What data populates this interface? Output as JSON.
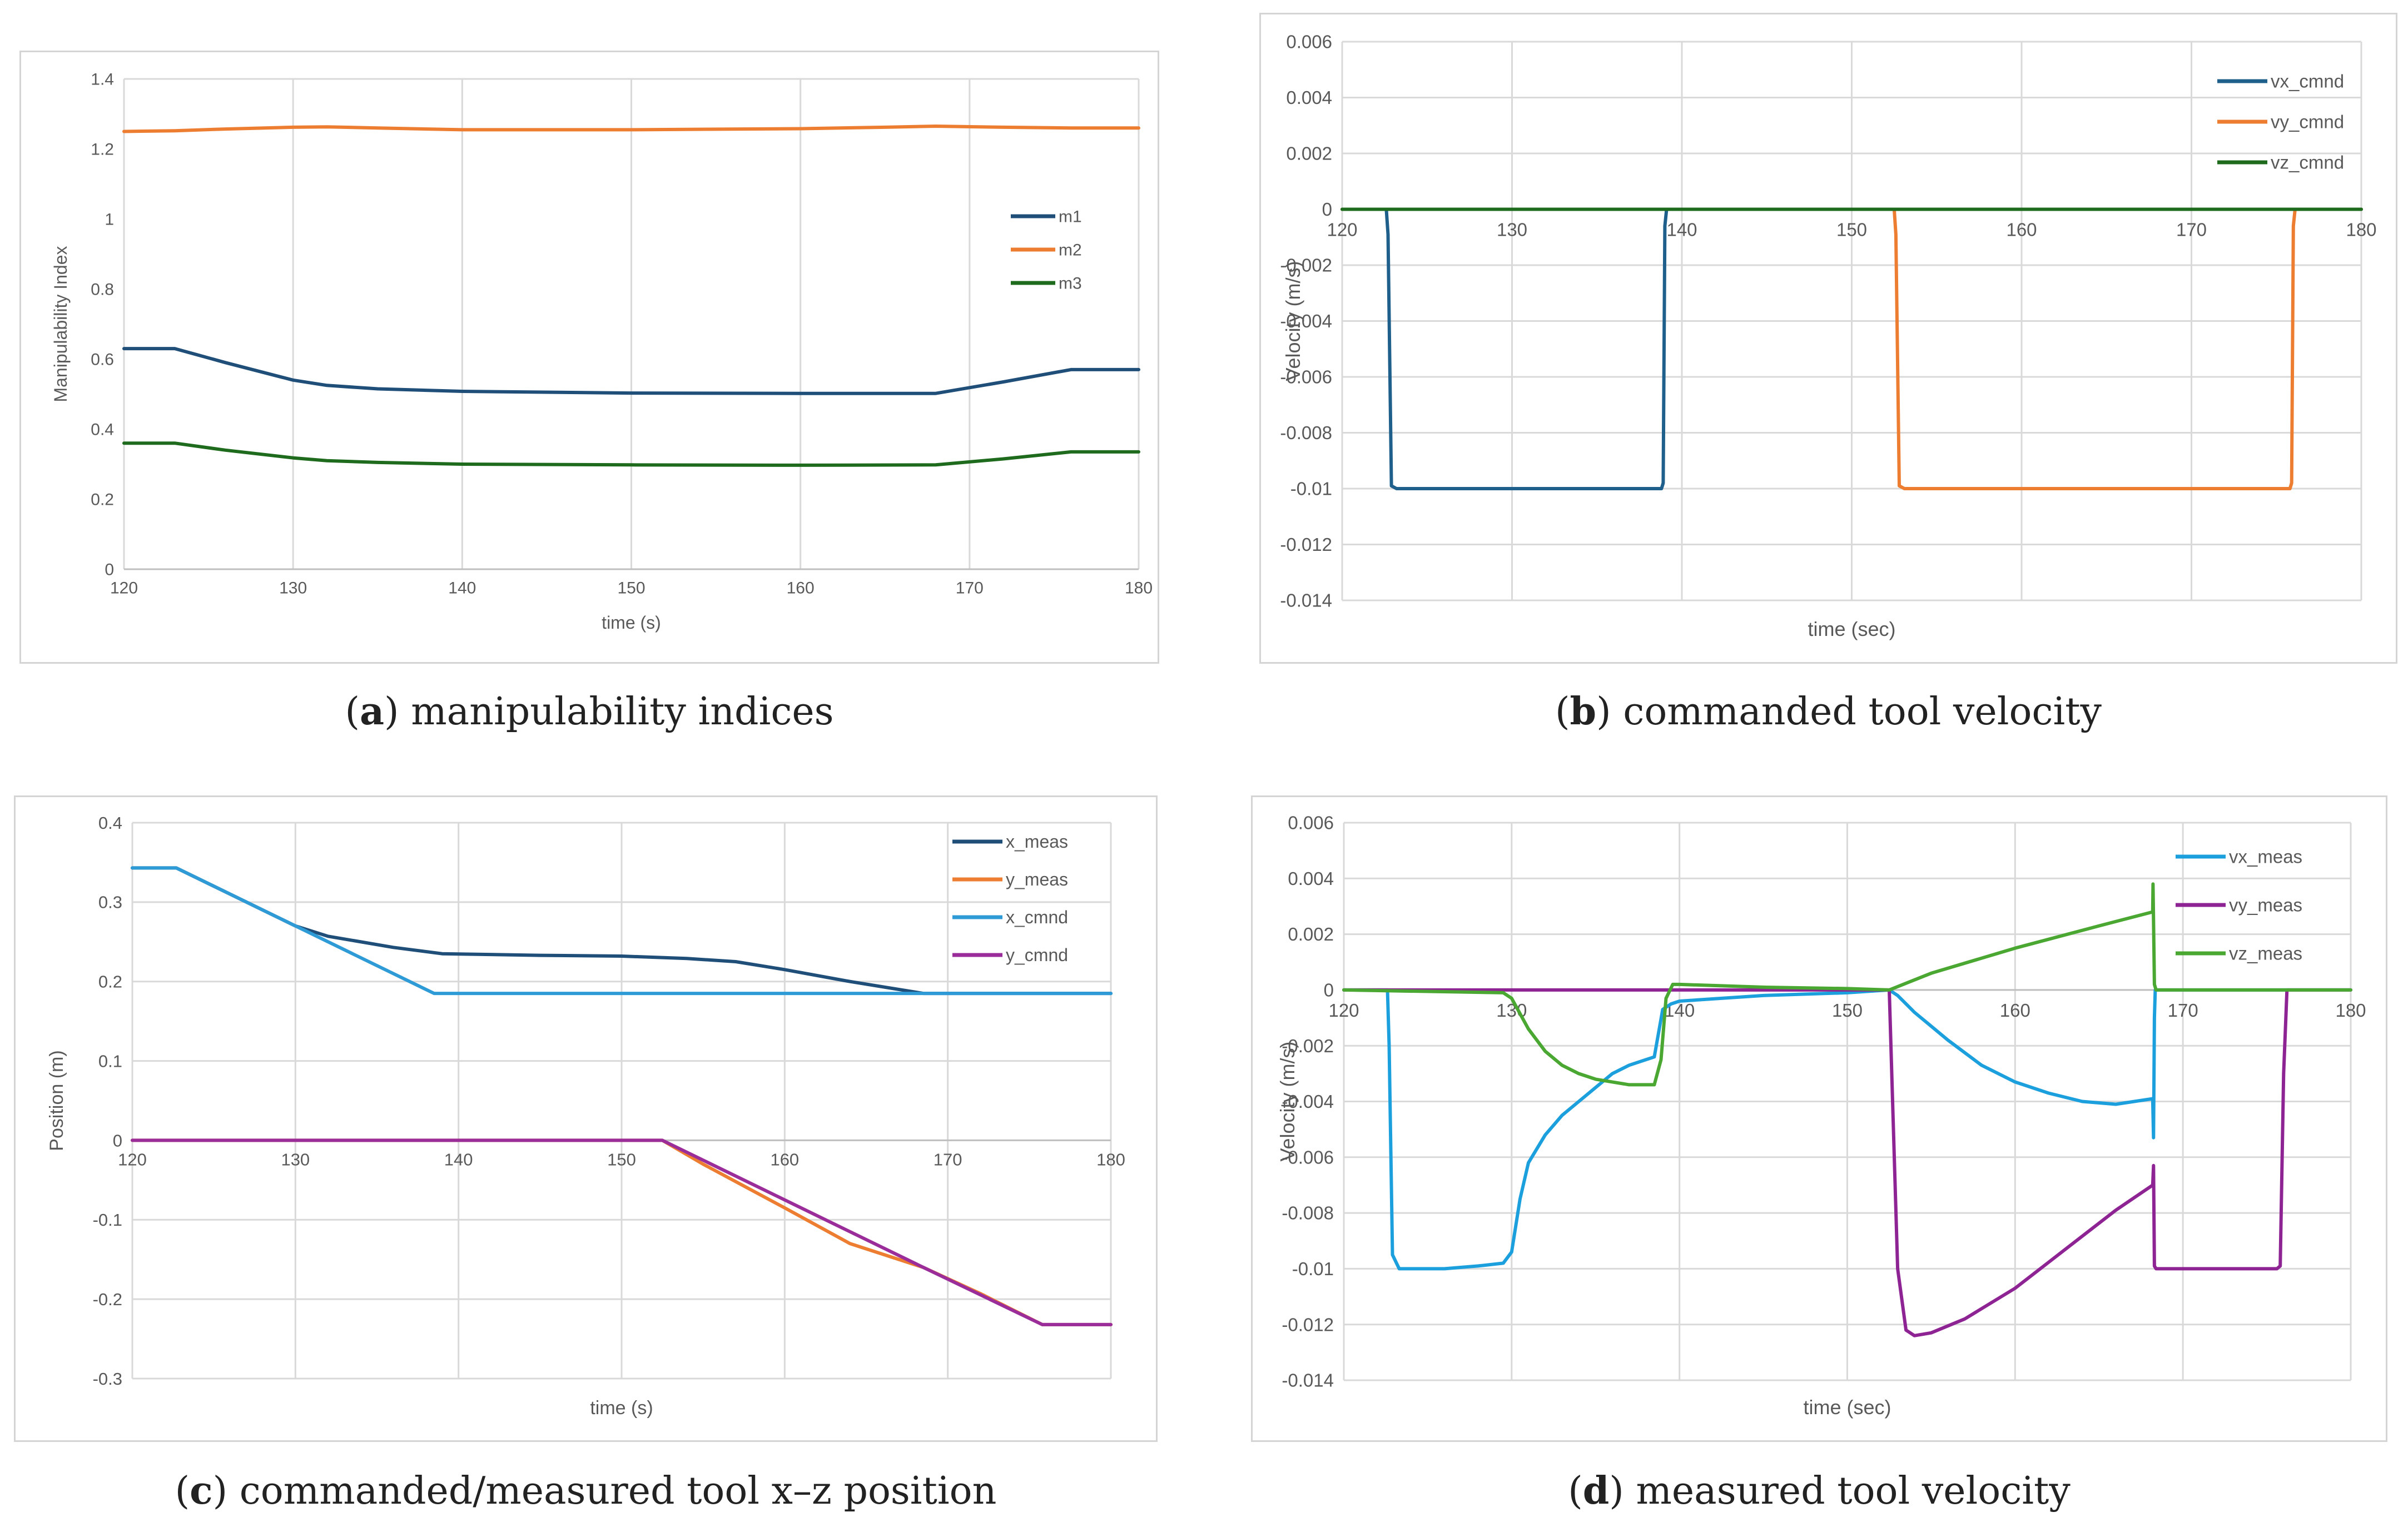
{
  "figure": {
    "captions": [
      {
        "letter": "a",
        "text": ") manipulability indices"
      },
      {
        "letter": "b",
        "text": ") commanded tool velocity"
      },
      {
        "letter": "c",
        "text": ") commanded/measured tool x–z position"
      },
      {
        "letter": "d",
        "text": ") measured tool velocity"
      }
    ]
  },
  "chart_data": [
    {
      "id": "a",
      "type": "line",
      "title": "",
      "xlabel": "time (s)",
      "ylabel": "Manipulability Index",
      "xlim": [
        120,
        180
      ],
      "ylim": [
        0,
        1.4
      ],
      "xticks": [
        120,
        130,
        140,
        150,
        160,
        170,
        180
      ],
      "xtick_labels": [
        "120",
        "130",
        "140",
        "150",
        "160",
        "170",
        "180"
      ],
      "yticks": [
        0,
        0.2,
        0.4,
        0.6,
        0.8,
        1,
        1.2,
        1.4
      ],
      "ytick_labels": [
        "0",
        "0.2",
        "0.4",
        "0.6",
        "0.8",
        "1",
        "1.2",
        "1.4"
      ],
      "grid": "vertical",
      "legend": "right",
      "series": [
        {
          "name": "m1",
          "color": "#1f4e79",
          "x": [
            120,
            123,
            126,
            130,
            132,
            135,
            140,
            150,
            160,
            168,
            172,
            176,
            180
          ],
          "y": [
            0.63,
            0.63,
            0.59,
            0.54,
            0.525,
            0.515,
            0.508,
            0.503,
            0.502,
            0.502,
            0.535,
            0.57,
            0.57
          ]
        },
        {
          "name": "m2",
          "color": "#ed7d31",
          "x": [
            120,
            123,
            126,
            130,
            132,
            135,
            140,
            150,
            160,
            165,
            168,
            172,
            176,
            180
          ],
          "y": [
            1.25,
            1.252,
            1.257,
            1.262,
            1.263,
            1.26,
            1.255,
            1.255,
            1.258,
            1.262,
            1.265,
            1.262,
            1.26,
            1.26
          ]
        },
        {
          "name": "m3",
          "color": "#1e6b1e",
          "x": [
            120,
            123,
            126,
            130,
            132,
            135,
            140,
            150,
            160,
            168,
            172,
            176,
            180
          ],
          "y": [
            0.36,
            0.36,
            0.34,
            0.318,
            0.31,
            0.305,
            0.3,
            0.298,
            0.297,
            0.298,
            0.315,
            0.335,
            0.335
          ]
        }
      ]
    },
    {
      "id": "b",
      "type": "line",
      "title": "",
      "xlabel": "time (sec)",
      "ylabel": "Velocity (m/s)",
      "xlim": [
        120,
        180
      ],
      "ylim": [
        -0.014,
        0.006
      ],
      "xticks": [
        120,
        130,
        140,
        150,
        160,
        170,
        180
      ],
      "xtick_labels": [
        "120",
        "130",
        "140",
        "150",
        "160",
        "170",
        "180"
      ],
      "yticks": [
        -0.014,
        -0.012,
        -0.01,
        -0.008,
        -0.006,
        -0.004,
        -0.002,
        0,
        0.002,
        0.004,
        0.006
      ],
      "ytick_labels": [
        "-0.014",
        "-0.012",
        "-0.01",
        "-0.008",
        "-0.006",
        "-0.004",
        "-0.002",
        "0",
        "0.002",
        "0.004",
        "0.006"
      ],
      "xaxis_at_zero": true,
      "grid": "both",
      "legend": "top-right",
      "series": [
        {
          "name": "vx_cmnd",
          "color": "#1f5f8b",
          "x": [
            120,
            122.6,
            122.7,
            122.9,
            123.2,
            123.6,
            138.8,
            138.9,
            139.0,
            139.1,
            180
          ],
          "y": [
            0,
            0,
            -0.0009,
            -0.0099,
            -0.01,
            -0.01,
            -0.01,
            -0.0098,
            -0.0006,
            0,
            0
          ]
        },
        {
          "name": "vy_cmnd",
          "color": "#ed7d31",
          "x": [
            120,
            152.5,
            152.6,
            152.8,
            153.1,
            153.5,
            175.8,
            175.9,
            176.0,
            176.1,
            180
          ],
          "y": [
            0,
            0,
            -0.0009,
            -0.0099,
            -0.01,
            -0.01,
            -0.01,
            -0.0098,
            -0.0006,
            0,
            0
          ]
        },
        {
          "name": "vz_cmnd",
          "color": "#1e6b1e",
          "x": [
            120,
            180
          ],
          "y": [
            0,
            0
          ]
        }
      ]
    },
    {
      "id": "c",
      "type": "line",
      "title": "",
      "xlabel": "time (s)",
      "ylabel": "Position (m)",
      "xlim": [
        120,
        180
      ],
      "ylim": [
        -0.3,
        0.4
      ],
      "xticks": [
        120,
        130,
        140,
        150,
        160,
        170,
        180
      ],
      "xtick_labels": [
        "120",
        "130",
        "140",
        "150",
        "160",
        "170",
        "180"
      ],
      "yticks": [
        -0.3,
        -0.2,
        -0.1,
        0,
        0.1,
        0.2,
        0.3,
        0.4
      ],
      "ytick_labels": [
        "-0.3",
        "-0.2",
        "-0.1",
        "0",
        "0.1",
        "0.2",
        "0.3",
        "0.4"
      ],
      "xaxis_at_zero": true,
      "grid": "both",
      "legend": "top-right",
      "series": [
        {
          "name": "x_meas",
          "color": "#1f4e79",
          "x": [
            120,
            122.7,
            126,
            130,
            132,
            136,
            139,
            145,
            150,
            154,
            157,
            160,
            164,
            168.5,
            180
          ],
          "y": [
            0.343,
            0.343,
            0.31,
            0.27,
            0.257,
            0.243,
            0.235,
            0.233,
            0.232,
            0.229,
            0.225,
            0.215,
            0.2,
            0.185,
            0.185
          ]
        },
        {
          "name": "y_meas",
          "color": "#ed7d31",
          "x": [
            120,
            152.5,
            155,
            160,
            164,
            168.5,
            172,
            175.8,
            180
          ],
          "y": [
            0,
            0,
            -0.03,
            -0.085,
            -0.13,
            -0.16,
            -0.193,
            -0.232,
            -0.232
          ]
        },
        {
          "name": "x_cmnd",
          "color": "#2e9bd6",
          "x": [
            120,
            122.7,
            138.5,
            180
          ],
          "y": [
            0.343,
            0.343,
            0.185,
            0.185
          ]
        },
        {
          "name": "y_cmnd",
          "color": "#9a2d9a",
          "x": [
            120,
            152.5,
            168.5,
            175.8,
            180
          ],
          "y": [
            0,
            0,
            -0.16,
            -0.232,
            -0.232
          ]
        }
      ]
    },
    {
      "id": "d",
      "type": "line",
      "title": "",
      "xlabel": "time (sec)",
      "ylabel": "Velocity (m/s)",
      "xlim": [
        120,
        180
      ],
      "ylim": [
        -0.014,
        0.006
      ],
      "xticks": [
        120,
        130,
        140,
        150,
        160,
        170,
        180
      ],
      "xtick_labels": [
        "120",
        "130",
        "140",
        "150",
        "160",
        "170",
        "180"
      ],
      "yticks": [
        -0.014,
        -0.012,
        -0.01,
        -0.008,
        -0.006,
        -0.004,
        -0.002,
        0,
        0.002,
        0.004,
        0.006
      ],
      "ytick_labels": [
        "-0.014",
        "-0.012",
        "-0.01",
        "-0.008",
        "-0.006",
        "-0.004",
        "-0.002",
        "0",
        "0.002",
        "0.004",
        "0.006"
      ],
      "xaxis_at_zero": true,
      "grid": "both",
      "legend": "top-right",
      "series": [
        {
          "name": "vx_meas",
          "color": "#1ca0dd",
          "x": [
            120,
            122.6,
            122.7,
            122.9,
            123.3,
            126,
            128,
            129.5,
            130,
            130.5,
            131,
            132,
            133,
            134,
            135,
            136,
            137,
            138.5,
            139.0,
            139.5,
            140,
            145,
            150,
            152.5,
            153,
            154,
            155,
            156,
            158,
            160,
            162,
            164,
            166,
            168.2,
            168.25,
            168.3,
            168.35,
            180
          ],
          "y": [
            0,
            0,
            -0.002,
            -0.0095,
            -0.01,
            -0.01,
            -0.0099,
            -0.0098,
            -0.0094,
            -0.0075,
            -0.0062,
            -0.0052,
            -0.0045,
            -0.004,
            -0.0035,
            -0.003,
            -0.0027,
            -0.0024,
            -0.0007,
            -0.0005,
            -0.0004,
            -0.0002,
            -0.0001,
            0,
            -0.0002,
            -0.0008,
            -0.0013,
            -0.0018,
            -0.0027,
            -0.0033,
            -0.0037,
            -0.004,
            -0.0041,
            -0.0039,
            -0.0053,
            -0.001,
            0,
            0
          ]
        },
        {
          "name": "vy_meas",
          "color": "#8e2393",
          "x": [
            120,
            152.5,
            152.7,
            153.0,
            153.5,
            154,
            155,
            157,
            160,
            163,
            166,
            168.2,
            168.25,
            168.3,
            168.4,
            175.6,
            175.8,
            176.0,
            176.2,
            180
          ],
          "y": [
            0,
            0,
            -0.004,
            -0.01,
            -0.0122,
            -0.0124,
            -0.0123,
            -0.0118,
            -0.0107,
            -0.0093,
            -0.0079,
            -0.007,
            -0.0063,
            -0.0099,
            -0.01,
            -0.01,
            -0.0099,
            -0.003,
            0,
            0
          ]
        },
        {
          "name": "vz_meas",
          "color": "#4aa832",
          "x": [
            120,
            129.5,
            130,
            131,
            132,
            133,
            134,
            135,
            136,
            137,
            138.5,
            138.9,
            139.2,
            139.6,
            140,
            145,
            150,
            152.5,
            155,
            160,
            165,
            168.2,
            168.22,
            168.3,
            168.4,
            180
          ],
          "y": [
            0,
            -0.0001,
            -0.0003,
            -0.0014,
            -0.0022,
            -0.0027,
            -0.003,
            -0.0032,
            -0.0033,
            -0.0034,
            -0.0034,
            -0.0025,
            -0.0003,
            0.0002,
            0.0002,
            0.0001,
            5e-05,
            0,
            0.0006,
            0.0015,
            0.0023,
            0.0028,
            0.0038,
            0.0002,
            0,
            0
          ]
        }
      ]
    }
  ]
}
